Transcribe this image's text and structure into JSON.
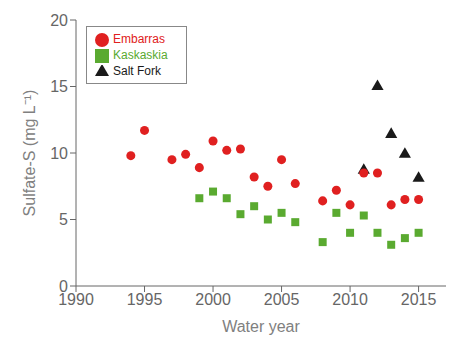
{
  "chart_data": {
    "type": "scatter",
    "xlabel": "Water year",
    "ylabel": "Sulfate-S (mg L⁻¹)",
    "series": [
      {
        "name": "Salt Fork",
        "color": "#1a1a1a",
        "marker": "triangle",
        "x": [
          2011,
          2012,
          2013,
          2014,
          2015
        ],
        "values": [
          8.7,
          15.0,
          11.4,
          9.9,
          8.1
        ]
      },
      {
        "name": "Embarras",
        "color": "#e02020",
        "marker": "circle",
        "x": [
          1994,
          1995,
          1997,
          1998,
          1999,
          2000,
          2001,
          2002,
          2003,
          2004,
          2005,
          2006,
          2008,
          2009,
          2010,
          2011,
          2012,
          2013,
          2014,
          2015
        ],
        "values": [
          9.8,
          11.7,
          9.5,
          9.9,
          8.9,
          10.9,
          10.2,
          10.3,
          8.2,
          7.5,
          9.5,
          7.7,
          6.4,
          7.2,
          6.1,
          8.5,
          8.5,
          6.1,
          6.5,
          6.5
        ]
      },
      {
        "name": "Kaskaskia",
        "color": "#5aaa30",
        "marker": "square",
        "x": [
          1999,
          2000,
          2001,
          2002,
          2003,
          2004,
          2005,
          2006,
          2008,
          2009,
          2010,
          2011,
          2012,
          2013,
          2014,
          2015
        ],
        "values": [
          6.6,
          7.1,
          6.6,
          5.4,
          6.0,
          5.0,
          5.5,
          4.8,
          3.3,
          5.5,
          4.0,
          5.3,
          4.0,
          3.1,
          3.6,
          4.0
        ]
      }
    ],
    "xlim": [
      1990,
      2017
    ],
    "xticks": [
      1990,
      1995,
      2000,
      2005,
      2010,
      2015
    ],
    "ylim": [
      0,
      20
    ],
    "yticks": [
      0,
      5,
      10,
      15,
      20
    ],
    "grid": false,
    "legend": "upper left"
  }
}
